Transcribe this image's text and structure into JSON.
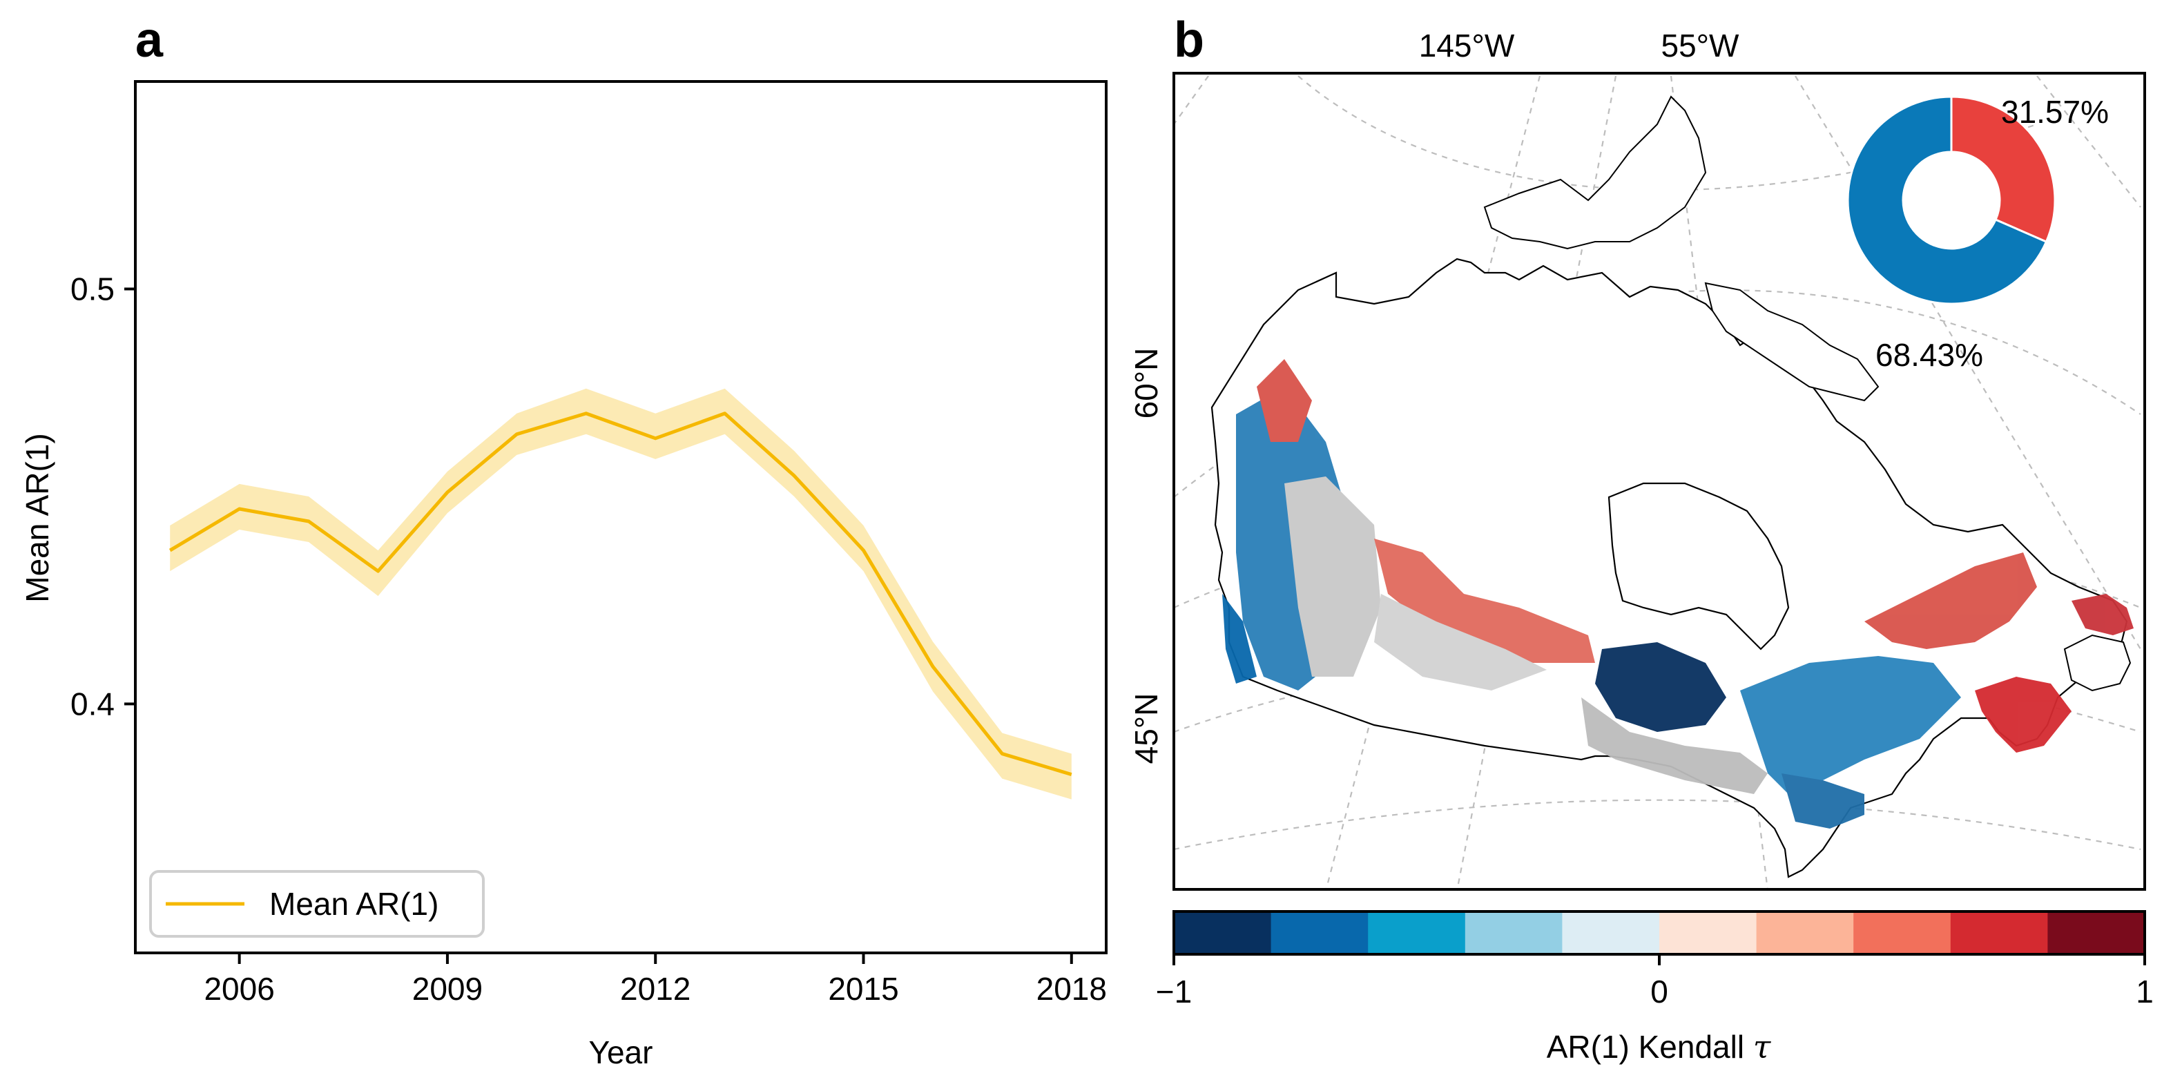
{
  "panels": {
    "a": {
      "label": "a"
    },
    "b": {
      "label": "b"
    }
  },
  "chart_data": [
    {
      "type": "line",
      "panel": "a",
      "xlabel": "Year",
      "ylabel": "Mean AR(1)",
      "xlim": [
        2004.5,
        2018.5
      ],
      "ylim": [
        0.34,
        0.55
      ],
      "xticks": [
        2006,
        2009,
        2012,
        2015,
        2018
      ],
      "yticks": [
        0.4,
        0.5
      ],
      "ytick_labels": [
        "0.4",
        "0.5"
      ],
      "x": [
        2005,
        2006,
        2007,
        2008,
        2009,
        2010,
        2011,
        2012,
        2013,
        2014,
        2015,
        2016,
        2017,
        2018
      ],
      "series": [
        {
          "name": "Mean AR(1)",
          "color": "#f5b800",
          "band_color": "#f9d977",
          "values": [
            0.437,
            0.447,
            0.444,
            0.432,
            0.451,
            0.465,
            0.47,
            0.464,
            0.47,
            0.455,
            0.437,
            0.409,
            0.388,
            0.383
          ],
          "lower": [
            0.432,
            0.442,
            0.439,
            0.426,
            0.446,
            0.46,
            0.465,
            0.459,
            0.465,
            0.45,
            0.432,
            0.403,
            0.382,
            0.377
          ],
          "upper": [
            0.443,
            0.453,
            0.45,
            0.437,
            0.456,
            0.47,
            0.476,
            0.47,
            0.476,
            0.461,
            0.443,
            0.415,
            0.393,
            0.388
          ]
        }
      ],
      "legend": {
        "location": "lower-left",
        "entries": [
          "Mean AR(1)"
        ]
      },
      "grid": false
    },
    {
      "type": "map",
      "panel": "b",
      "region": "Canada",
      "projection": "conic (Lambert-like)",
      "lon_labels": [
        "145°W",
        "55°W"
      ],
      "lat_labels": [
        "60°N",
        "45°N"
      ],
      "colorbar": {
        "label": "AR(1) Kendall τ",
        "label_main": "AR(1) Kendall ",
        "label_symbol": "τ",
        "range": [
          -1,
          1
        ],
        "ticks": [
          -1,
          0,
          1
        ],
        "tick_labels": [
          "−1",
          "0",
          "1"
        ],
        "colors": [
          "#08305f",
          "#0868ac",
          "#0a9fcb",
          "#93cfe4",
          "#ddedf4",
          "#fde3d6",
          "#fcb498",
          "#f2705b",
          "#d42a30",
          "#7a0b1c"
        ]
      },
      "legend": "none"
    },
    {
      "type": "pie",
      "panel": "b-inset",
      "style": "donut",
      "labels": [
        "31.57%",
        "68.43%"
      ],
      "values": [
        31.57,
        68.43
      ],
      "colors": [
        "#e8413d",
        "#0a79b8"
      ]
    }
  ]
}
